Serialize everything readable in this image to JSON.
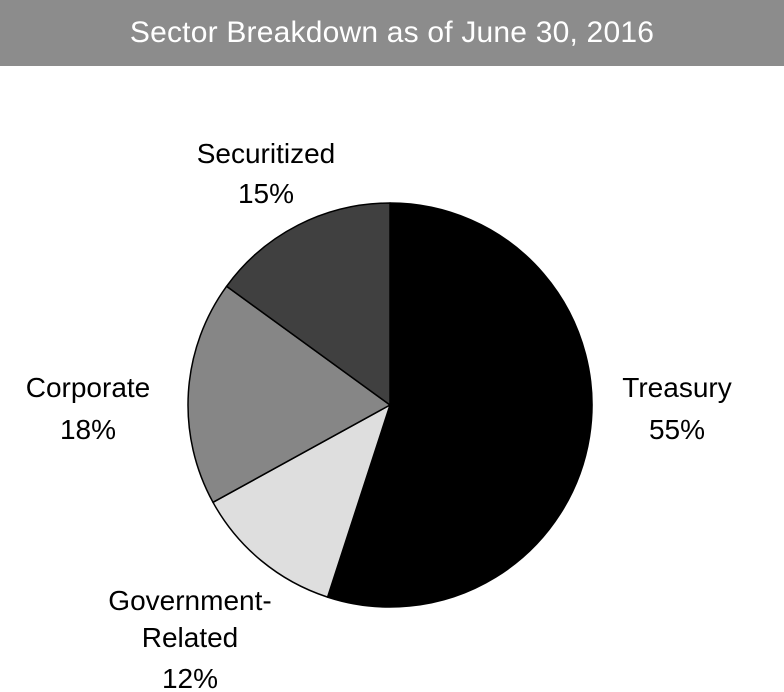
{
  "chart_data": {
    "type": "pie",
    "title": "Sector Breakdown as of June 30, 2016",
    "slices": [
      {
        "label": "Treasury",
        "percent_label": "55%",
        "value": 55,
        "color": "#000000"
      },
      {
        "label": "Government-Related",
        "percent_label": "12%",
        "value": 12,
        "color": "#dedede"
      },
      {
        "label": "Corporate",
        "percent_label": "18%",
        "value": 18,
        "color": "#868686"
      },
      {
        "label": "Securitized",
        "percent_label": "15%",
        "value": 15,
        "color": "#404040"
      }
    ],
    "start": "12 o'clock",
    "direction": "clockwise"
  }
}
